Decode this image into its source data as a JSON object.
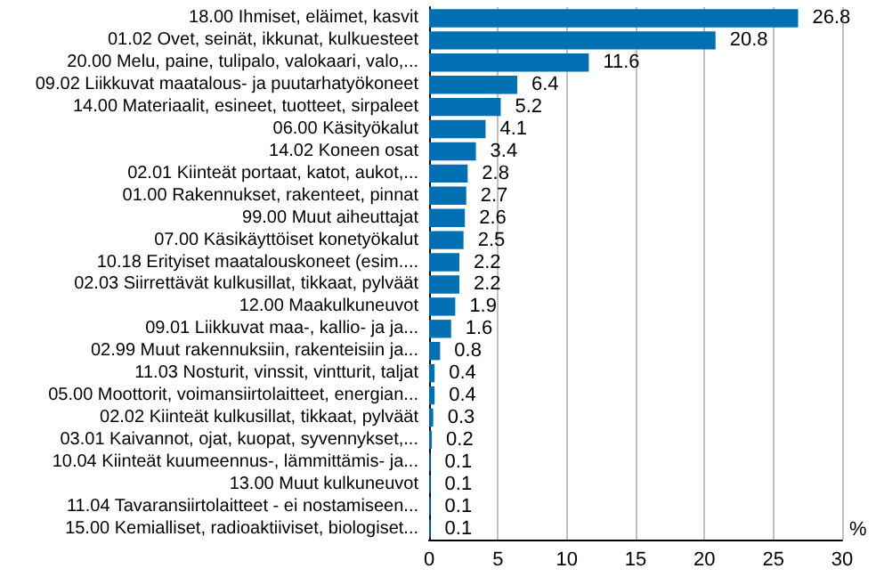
{
  "chart_data": {
    "type": "bar",
    "orientation": "horizontal",
    "xlabel": "%",
    "categories": [
      "18.00 Ihmiset, eläimet, kasvit",
      "01.02 Ovet, seinät, ikkunat, kulkuesteet",
      "20.00 Melu, paine, tulipalo, valokaari, valo,...",
      "09.02 Liikkuvat maatalous- ja puutarhatyökoneet",
      "14.00 Materiaalit, esineet, tuotteet, sirpaleet",
      "06.00 Käsityökalut",
      "14.02 Koneen osat",
      "02.01 Kiinteät portaat, katot, aukot,...",
      "01.00 Rakennukset, rakenteet, pinnat",
      "99.00 Muut aiheuttajat",
      "07.00 Käsikäyttöiset konetyökalut",
      "10.18 Erityiset maatalouskoneet (esim....",
      "02.03 Siirrettävät kulkusillat, tikkaat, pylväät",
      "12.00 Maakulkuneuvot",
      "09.01 Liikkuvat maa-, kallio- ja ja...",
      "02.99 Muut rakennuksiin, rakenteisiin ja...",
      "11.03 Nosturit, vinssit, vintturit, taljat",
      "05.00 Moottorit, voimansiirtolaitteet, energian...",
      "02.02 Kiinteät kulkusillat, tikkaat, pylväät",
      "03.01 Kaivannot, ojat, kuopat, syvennykset,...",
      "10.04 Kiinteät kuumeennus-, lämmittämis- ja...",
      "13.00 Muut kulkuneuvot",
      "11.04 Tavaransiirtolaitteet - ei nostamiseen...",
      "15.00 Kemialliset, radioaktiiviset, biologiset..."
    ],
    "values": [
      26.8,
      20.8,
      11.6,
      6.4,
      5.2,
      4.1,
      3.4,
      2.8,
      2.7,
      2.6,
      2.5,
      2.2,
      2.2,
      1.9,
      1.6,
      0.8,
      0.4,
      0.4,
      0.3,
      0.2,
      0.1,
      0.1,
      0.1,
      0.1
    ],
    "color": "#0070b2",
    "xlim": [
      0,
      30
    ],
    "xticks": [
      0,
      5,
      10,
      15,
      20,
      25,
      30
    ],
    "grid": "x",
    "data_labels": true
  }
}
